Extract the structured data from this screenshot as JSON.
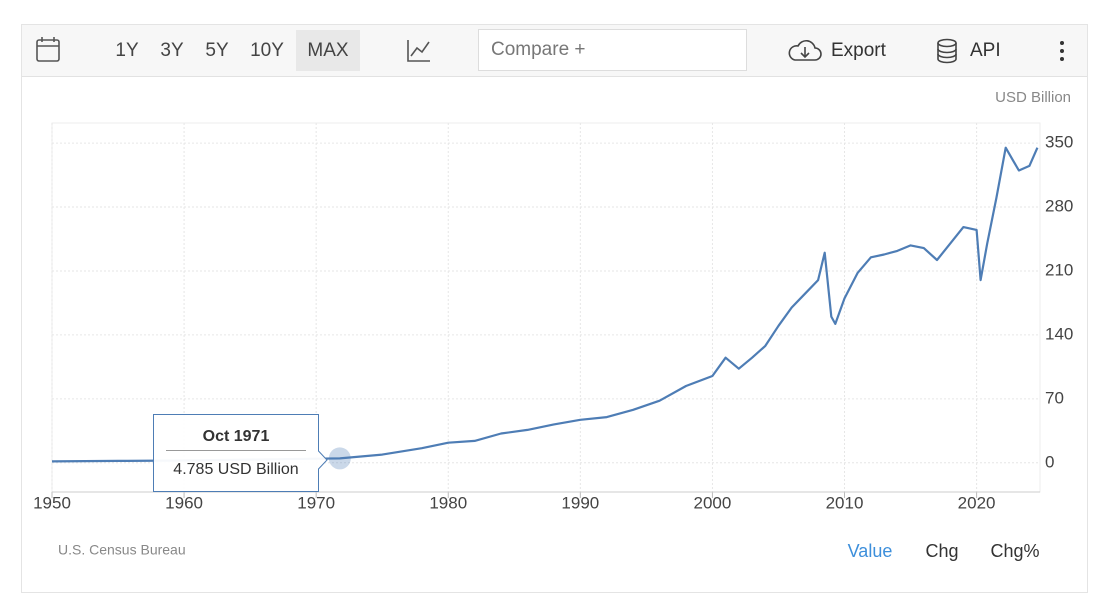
{
  "toolbar": {
    "ranges": [
      "1Y",
      "3Y",
      "5Y",
      "10Y",
      "MAX"
    ],
    "compare": "Compare +",
    "export": "Export",
    "api": "API"
  },
  "footer": {
    "source": "U.S. Census Bureau",
    "tabs": [
      "Value",
      "Chg",
      "Chg%"
    ]
  },
  "chart_data": {
    "type": "line",
    "unit": "USD Billion",
    "x": [
      1950,
      1955,
      1960,
      1965,
      1970,
      1971.79,
      1975,
      1978,
      1980,
      1982,
      1984,
      1986,
      1988,
      1990,
      1992,
      1994,
      1996,
      1998,
      2000,
      2001,
      2002,
      2003,
      2004,
      2005,
      2006,
      2007,
      2008,
      2008.5,
      2009,
      2009.3,
      2010,
      2011,
      2012,
      2013,
      2014,
      2015,
      2016,
      2017,
      2018,
      2019,
      2020,
      2020.3,
      2020.8,
      2021.5,
      2022.2,
      2022.8,
      2023.2,
      2024,
      2024.6
    ],
    "series": [
      {
        "name": "Value",
        "color": "#4e7db5",
        "values": [
          1.5,
          2,
          2.5,
          3.5,
          4.5,
          4.785,
          9,
          16,
          22,
          24,
          32,
          36,
          42,
          47,
          50,
          58,
          68,
          84,
          95,
          115,
          103,
          115,
          128,
          150,
          170,
          185,
          200,
          230,
          160,
          152,
          180,
          208,
          225,
          228,
          232,
          238,
          235,
          222,
          240,
          258,
          255,
          200,
          240,
          290,
          345,
          330,
          320,
          325,
          345
        ]
      }
    ],
    "xlim": [
      1950,
      2024.8
    ],
    "ylim": [
      -32,
      372
    ],
    "xticks": [
      1950,
      1960,
      1970,
      1980,
      1990,
      2000,
      2010,
      2020
    ],
    "yticks": [
      0,
      70,
      140,
      210,
      280,
      350
    ],
    "grid": true,
    "tooltip": {
      "date": "Oct 1971",
      "x": 1971.79,
      "value": 4.785,
      "text": "4.785 USD Billion"
    }
  }
}
